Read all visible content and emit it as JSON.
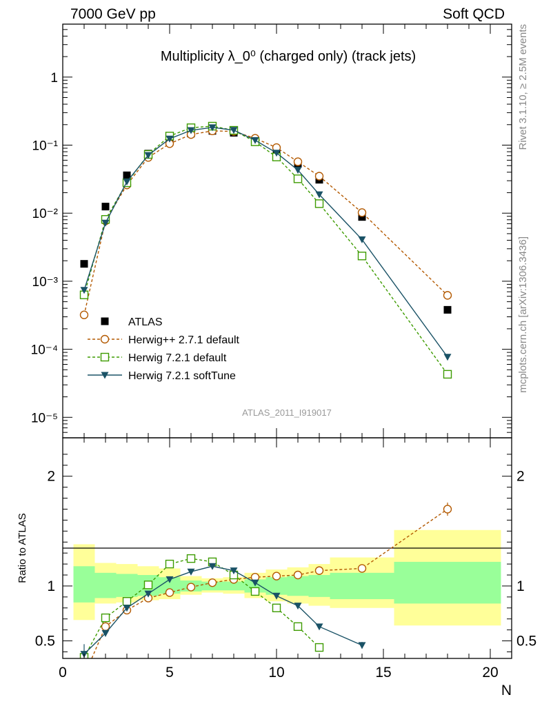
{
  "header": {
    "left": "7000 GeV pp",
    "right": "Soft QCD"
  },
  "side_labels": {
    "rivet": "Rivet 3.1.10, ≥ 2.5M events",
    "mcplots": "mcplots.cern.ch [arXiv:1306.3436]"
  },
  "chart_data": {
    "type": "scatter",
    "title": "Multiplicity λ_0⁰ (charged only) (track jets)",
    "watermark": "ATLAS_2011_I919017",
    "xlabel": "N",
    "ylabel_ratio": "Ratio to ATLAS",
    "xlim": [
      0,
      21
    ],
    "ylim_main": [
      5e-06,
      6
    ],
    "ylim_ratio": [
      0.34,
      2.35
    ],
    "y_scale_main": "log",
    "x_ticks": [
      "0",
      "5",
      "10",
      "15",
      "20"
    ],
    "y_ticks_main": [
      "10⁻⁵",
      "10⁻⁴",
      "10⁻³",
      "10⁻²",
      "10⁻¹",
      "1"
    ],
    "y_ticks_ratio": [
      "0.5",
      "1",
      "2"
    ],
    "legend": [
      "ATLAS",
      "Herwig++ 2.7.1 default",
      "Herwig 7.2.1 default",
      "Herwig 7.2.1 softTune"
    ],
    "band_edges": [
      0.5,
      1.5,
      2.5,
      3.5,
      4.5,
      5.5,
      6.5,
      7.5,
      8.5,
      9.5,
      10.5,
      11.5,
      12.5,
      15.5,
      20.5
    ],
    "band_inner": [
      [
        0.85,
        1.18
      ],
      [
        0.89,
        1.12
      ],
      [
        0.9,
        1.11
      ],
      [
        0.91,
        1.1
      ],
      [
        0.93,
        1.08
      ],
      [
        0.95,
        1.05
      ],
      [
        0.96,
        1.04
      ],
      [
        0.96,
        1.04
      ],
      [
        0.94,
        1.06
      ],
      [
        0.92,
        1.08
      ],
      [
        0.91,
        1.09
      ],
      [
        0.9,
        1.1
      ],
      [
        0.88,
        1.12
      ],
      [
        0.84,
        1.22
      ]
    ],
    "band_outer": [
      [
        0.69,
        1.38
      ],
      [
        0.84,
        1.21
      ],
      [
        0.85,
        1.2
      ],
      [
        0.87,
        1.18
      ],
      [
        0.88,
        1.16
      ],
      [
        0.92,
        1.09
      ],
      [
        0.94,
        1.07
      ],
      [
        0.93,
        1.08
      ],
      [
        0.89,
        1.12
      ],
      [
        0.86,
        1.15
      ],
      [
        0.84,
        1.17
      ],
      [
        0.82,
        1.2
      ],
      [
        0.8,
        1.26
      ],
      [
        0.64,
        1.51
      ]
    ],
    "series": [
      {
        "name": "ATLAS",
        "color": "#000000",
        "marker": "square-filled",
        "x": [
          1,
          2,
          3,
          4,
          5,
          6,
          7,
          8,
          9,
          10,
          11,
          12,
          14,
          18
        ],
        "y": [
          0.0018,
          0.0125,
          0.036,
          0.075,
          0.115,
          0.148,
          0.162,
          0.152,
          0.118,
          0.085,
          0.053,
          0.031,
          0.0088,
          0.00038
        ]
      },
      {
        "name": "Herwig++ 2.7.1 default",
        "color": "#b35900",
        "marker": "circle-open",
        "dash": true,
        "x": [
          1,
          2,
          3,
          4,
          5,
          6,
          7,
          8,
          9,
          10,
          11,
          12,
          14,
          18
        ],
        "y": [
          0.00032,
          0.0077,
          0.026,
          0.066,
          0.105,
          0.143,
          0.162,
          0.159,
          0.126,
          0.092,
          0.057,
          0.035,
          0.0102,
          0.00062
        ],
        "ratio_x": [
          1,
          2,
          3,
          4,
          5,
          6,
          7,
          8,
          9,
          10,
          11,
          12,
          14,
          18
        ],
        "ratio": [
          0.18,
          0.63,
          0.78,
          0.89,
          0.94,
          0.99,
          1.03,
          1.06,
          1.08,
          1.09,
          1.1,
          1.14,
          1.16,
          1.7
        ],
        "ratio_err": [
          0.05,
          0.03,
          0.02,
          0.01,
          0.01,
          0.01,
          0.01,
          0.01,
          0.01,
          0.01,
          0.01,
          0.01,
          0.02,
          0.06
        ]
      },
      {
        "name": "Herwig 7.2.1 default",
        "color": "#3d9b00",
        "marker": "square-open",
        "dash": true,
        "x": [
          1,
          2,
          3,
          4,
          5,
          6,
          7,
          8,
          9,
          10,
          11,
          12,
          14,
          18
        ],
        "y": [
          0.00063,
          0.0081,
          0.028,
          0.073,
          0.136,
          0.18,
          0.19,
          0.165,
          0.112,
          0.067,
          0.032,
          0.0138,
          0.00235,
          4.29e-05
        ],
        "ratio_x": [
          1,
          2,
          3,
          4,
          5,
          6,
          7,
          8,
          9,
          10,
          11,
          12
        ],
        "ratio": [
          0.35,
          0.71,
          0.86,
          1.01,
          1.2,
          1.25,
          1.22,
          1.1,
          0.95,
          0.8,
          0.63,
          0.44
        ],
        "ratio_err": [
          0.06,
          0.03,
          0.02,
          0.01,
          0.01,
          0.01,
          0.01,
          0.01,
          0.01,
          0.01,
          0.01,
          0.02
        ]
      },
      {
        "name": "Herwig 7.2.1 softTune",
        "color": "#1a5266",
        "marker": "triangle-down-filled",
        "dash": false,
        "x": [
          1,
          2,
          3,
          4,
          5,
          6,
          7,
          8,
          9,
          10,
          11,
          12,
          14,
          18
        ],
        "y": [
          0.00074,
          0.0072,
          0.029,
          0.071,
          0.124,
          0.165,
          0.182,
          0.166,
          0.118,
          0.077,
          0.043,
          0.0188,
          0.0041,
          7.7e-05
        ],
        "ratio_x": [
          1,
          2,
          3,
          4,
          5,
          6,
          7,
          8,
          9,
          10,
          11,
          12,
          14
        ],
        "ratio": [
          0.38,
          0.57,
          0.8,
          0.93,
          1.06,
          1.13,
          1.18,
          1.14,
          1.03,
          0.91,
          0.82,
          0.63,
          0.46
        ],
        "ratio_err": [
          0.09,
          0.03,
          0.02,
          0.01,
          0.01,
          0.01,
          0.01,
          0.01,
          0.01,
          0.01,
          0.01,
          0.02,
          0.03
        ]
      }
    ]
  }
}
